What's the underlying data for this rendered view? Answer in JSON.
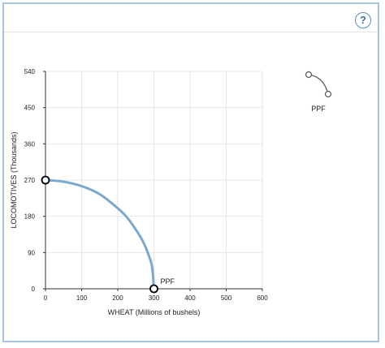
{
  "help": {
    "label": "?"
  },
  "chart_data": {
    "type": "line",
    "xlabel": "WHEAT (Millions of bushels)",
    "ylabel": "LOCOMOTIVES (Thousands)",
    "xlim": [
      0,
      600
    ],
    "ylim": [
      0,
      540
    ],
    "xticks": [
      0,
      100,
      200,
      300,
      400,
      500,
      600
    ],
    "yticks": [
      0,
      90,
      180,
      270,
      360,
      450,
      540
    ],
    "grid": true,
    "series": [
      {
        "name": "PPF",
        "color": "#7aa9d0",
        "x": [
          0,
          50,
          100,
          150,
          200,
          225,
          250,
          270,
          285,
          295,
          300
        ],
        "y": [
          270,
          266,
          255,
          235,
          200,
          178,
          147,
          117,
          85,
          54,
          0
        ],
        "endpoints": [
          [
            0,
            270
          ],
          [
            300,
            0
          ]
        ],
        "endpoint_label": "PPF"
      }
    ],
    "legend": {
      "placement": "top-right",
      "label": "PPF",
      "icon": "ppf-curve-tool-icon"
    }
  }
}
